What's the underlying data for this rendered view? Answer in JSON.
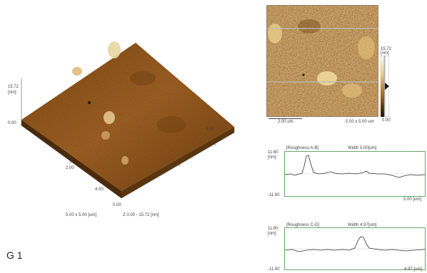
{
  "surface3d": {
    "z_max_label": "15.72",
    "z_unit_label": "[nm]",
    "z_min_label": "0.00",
    "x_ticks": [
      "2.00",
      "4.00"
    ],
    "y_ticks": [
      "0.00",
      "2.00",
      "4.00"
    ],
    "caption_size": "5.00 x 5.00 [um]",
    "caption_z": "Z  0.00  -  15.72  [nm]"
  },
  "topo2d": {
    "scale_bar_label": "2.00 um",
    "size_label": "5.00 x 5.00 um",
    "colorbar_max": "15.72",
    "colorbar_unit": "[nm]",
    "colorbar_min": "0.00"
  },
  "profiles": [
    {
      "title": "[Roughness A-B]",
      "width_label": "Width 5.00[um]",
      "y_max": "11.80",
      "y_unit": "[nm]",
      "y_min": "-11.80",
      "x_end": "5.00 [um]"
    },
    {
      "title": "[Roughness C-D]",
      "width_label": "Width 4.97[um]",
      "y_max": "11.80",
      "y_unit": "[nm]",
      "y_min": "-11.80",
      "x_end": "4.97 [um]"
    }
  ],
  "sample_label": "G 1",
  "colors": {
    "surface_dark": "#6b3f10",
    "surface_mid": "#a8692a",
    "surface_light": "#e8c88a",
    "frame_green": "#6aa86a"
  }
}
